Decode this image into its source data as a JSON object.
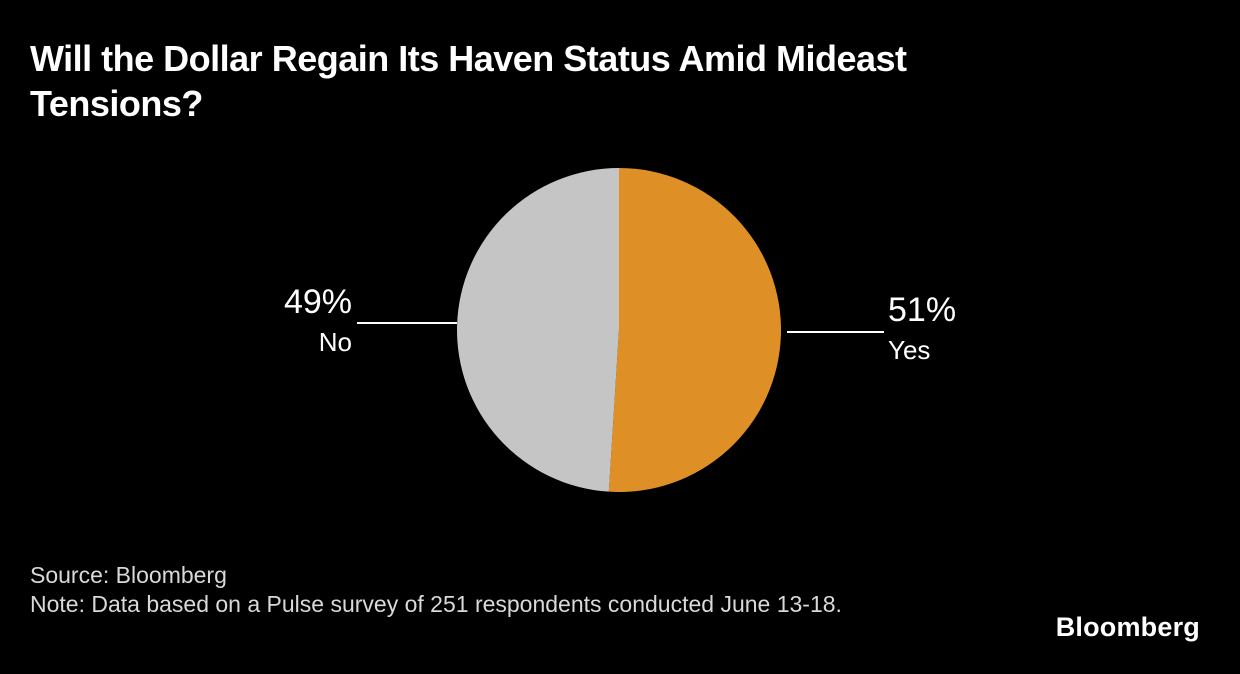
{
  "branding": {
    "logo_text": "Bloomberg"
  },
  "chart_data": {
    "type": "pie",
    "title": "Will the Dollar Regain Its Haven Status Amid Mideast Tensions?",
    "slices": [
      {
        "label": "Yes",
        "value": 51,
        "display": "51%",
        "color": "#DE9027"
      },
      {
        "label": "No",
        "value": 49,
        "display": "49%",
        "color": "#C5C5C5"
      }
    ],
    "start_angle_deg": 0,
    "direction": "clockwise",
    "legend_position": "callouts",
    "source": "Source: Bloomberg",
    "note": "Note: Data based on a Pulse survey of 251 respondents conducted June 13-18.",
    "background": "#000000",
    "title_color": "#FFFFFF",
    "footnote_color": "#D9D9D9",
    "leader_line_color": "#FFFFFF"
  }
}
